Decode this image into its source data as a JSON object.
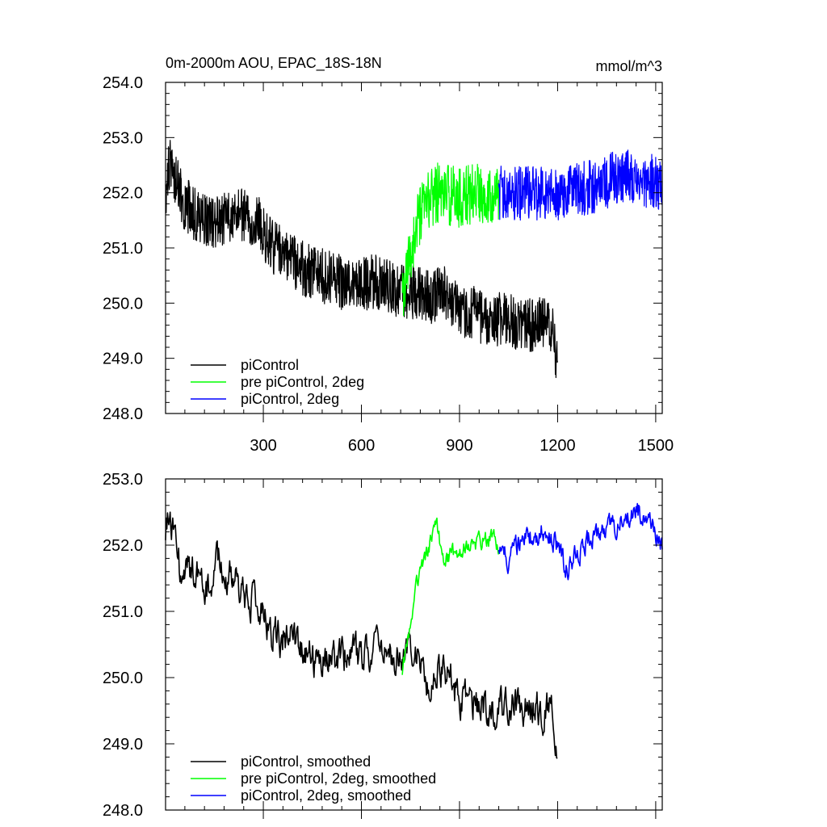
{
  "page": {
    "title": "0m-2000m AOU, EPAC_18S-18N",
    "units": "mmol/m^3"
  },
  "colors": {
    "piControl": "#000000",
    "pre_piControl_2deg": "#00ff00",
    "piControl_2deg": "#0000ff"
  },
  "chart_data": [
    {
      "type": "line",
      "name": "raw",
      "title": "0m-2000m AOU, EPAC_18S-18N",
      "units_label": "mmol/m^3",
      "xlim": [
        1,
        1520
      ],
      "ylim": [
        248.0,
        254.0
      ],
      "x_ticks": [
        300,
        600,
        900,
        1200,
        1500
      ],
      "x_tick_labels": [
        "300",
        "600",
        "900",
        "1200",
        "1500"
      ],
      "y_ticks": [
        248.0,
        249.0,
        250.0,
        251.0,
        252.0,
        253.0,
        254.0
      ],
      "y_tick_labels": [
        "248.0",
        "249.0",
        "250.0",
        "251.0",
        "252.0",
        "253.0",
        "254.0"
      ],
      "legend_position": "bottom-left",
      "series": [
        {
          "name": "piControl",
          "color": "#000000",
          "x": [
            1,
            15,
            30,
            50,
            75,
            100,
            130,
            160,
            200,
            240,
            280,
            330,
            380,
            430,
            480,
            530,
            580,
            630,
            680,
            720,
            760,
            800,
            850,
            900,
            950,
            1000,
            1050,
            1100,
            1150,
            1180,
            1200
          ],
          "values": [
            252.0,
            252.6,
            252.3,
            251.9,
            251.7,
            251.6,
            251.5,
            251.5,
            251.5,
            251.6,
            251.5,
            251.0,
            250.8,
            250.6,
            250.5,
            250.4,
            250.3,
            250.4,
            250.3,
            250.2,
            250.2,
            250.1,
            250.2,
            249.9,
            249.8,
            249.7,
            249.7,
            249.6,
            249.6,
            249.6,
            248.8
          ],
          "noise": 0.5
        },
        {
          "name": "pre piControl, 2deg",
          "color": "#00ff00",
          "x": [
            725,
            750,
            775,
            800,
            825,
            850,
            900,
            950,
            1000,
            1020
          ],
          "values": [
            250.0,
            250.9,
            251.5,
            251.8,
            252.0,
            252.0,
            251.9,
            252.0,
            252.0,
            252.0
          ],
          "noise": 0.55
        },
        {
          "name": "piControl, 2deg",
          "color": "#0000ff",
          "x": [
            1020,
            1100,
            1200,
            1300,
            1400,
            1500,
            1520
          ],
          "values": [
            252.0,
            252.0,
            252.0,
            252.1,
            252.3,
            252.2,
            252.1
          ],
          "noise": 0.5
        }
      ]
    },
    {
      "type": "line",
      "name": "smoothed",
      "xlim": [
        1,
        1520
      ],
      "ylim": [
        248.0,
        253.0
      ],
      "x_ticks": [
        300,
        600,
        900,
        1200,
        1500
      ],
      "y_ticks": [
        248.0,
        249.0,
        250.0,
        251.0,
        252.0,
        253.0
      ],
      "y_tick_labels": [
        "248.0",
        "249.0",
        "250.0",
        "251.0",
        "252.0",
        "253.0"
      ],
      "legend_position": "bottom-left",
      "series": [
        {
          "name": "piControl, smoothed",
          "color": "#000000",
          "x": [
            1,
            10,
            25,
            50,
            75,
            100,
            130,
            160,
            200,
            240,
            280,
            330,
            380,
            430,
            480,
            530,
            580,
            630,
            680,
            720,
            760,
            800,
            850,
            900,
            950,
            1000,
            1050,
            1100,
            1150,
            1180,
            1200
          ],
          "values": [
            252.2,
            252.5,
            252.2,
            251.5,
            251.6,
            251.7,
            251.4,
            251.7,
            251.5,
            251.2,
            251.1,
            250.6,
            250.6,
            250.3,
            250.2,
            250.3,
            250.3,
            250.4,
            250.4,
            250.3,
            250.3,
            250.0,
            250.2,
            249.7,
            249.6,
            249.5,
            249.6,
            249.5,
            249.5,
            249.6,
            249.0
          ],
          "noise": 0.25
        },
        {
          "name": "pre piControl, 2deg, smoothed",
          "color": "#00ff00",
          "x": [
            725,
            745,
            765,
            790,
            810,
            830,
            850,
            900,
            950,
            1000,
            1020
          ],
          "values": [
            250.1,
            250.7,
            251.3,
            251.8,
            252.0,
            252.3,
            251.8,
            251.9,
            252.0,
            252.1,
            252.0
          ],
          "noise": 0.12
        },
        {
          "name": "piControl, 2deg, smoothed",
          "color": "#0000ff",
          "x": [
            1020,
            1050,
            1100,
            1150,
            1200,
            1230,
            1250,
            1300,
            1350,
            1400,
            1450,
            1500,
            1520
          ],
          "values": [
            252.0,
            251.8,
            252.1,
            252.2,
            252.0,
            251.6,
            251.8,
            252.1,
            252.2,
            252.4,
            252.5,
            252.2,
            252.0
          ],
          "noise": 0.15
        }
      ]
    }
  ]
}
